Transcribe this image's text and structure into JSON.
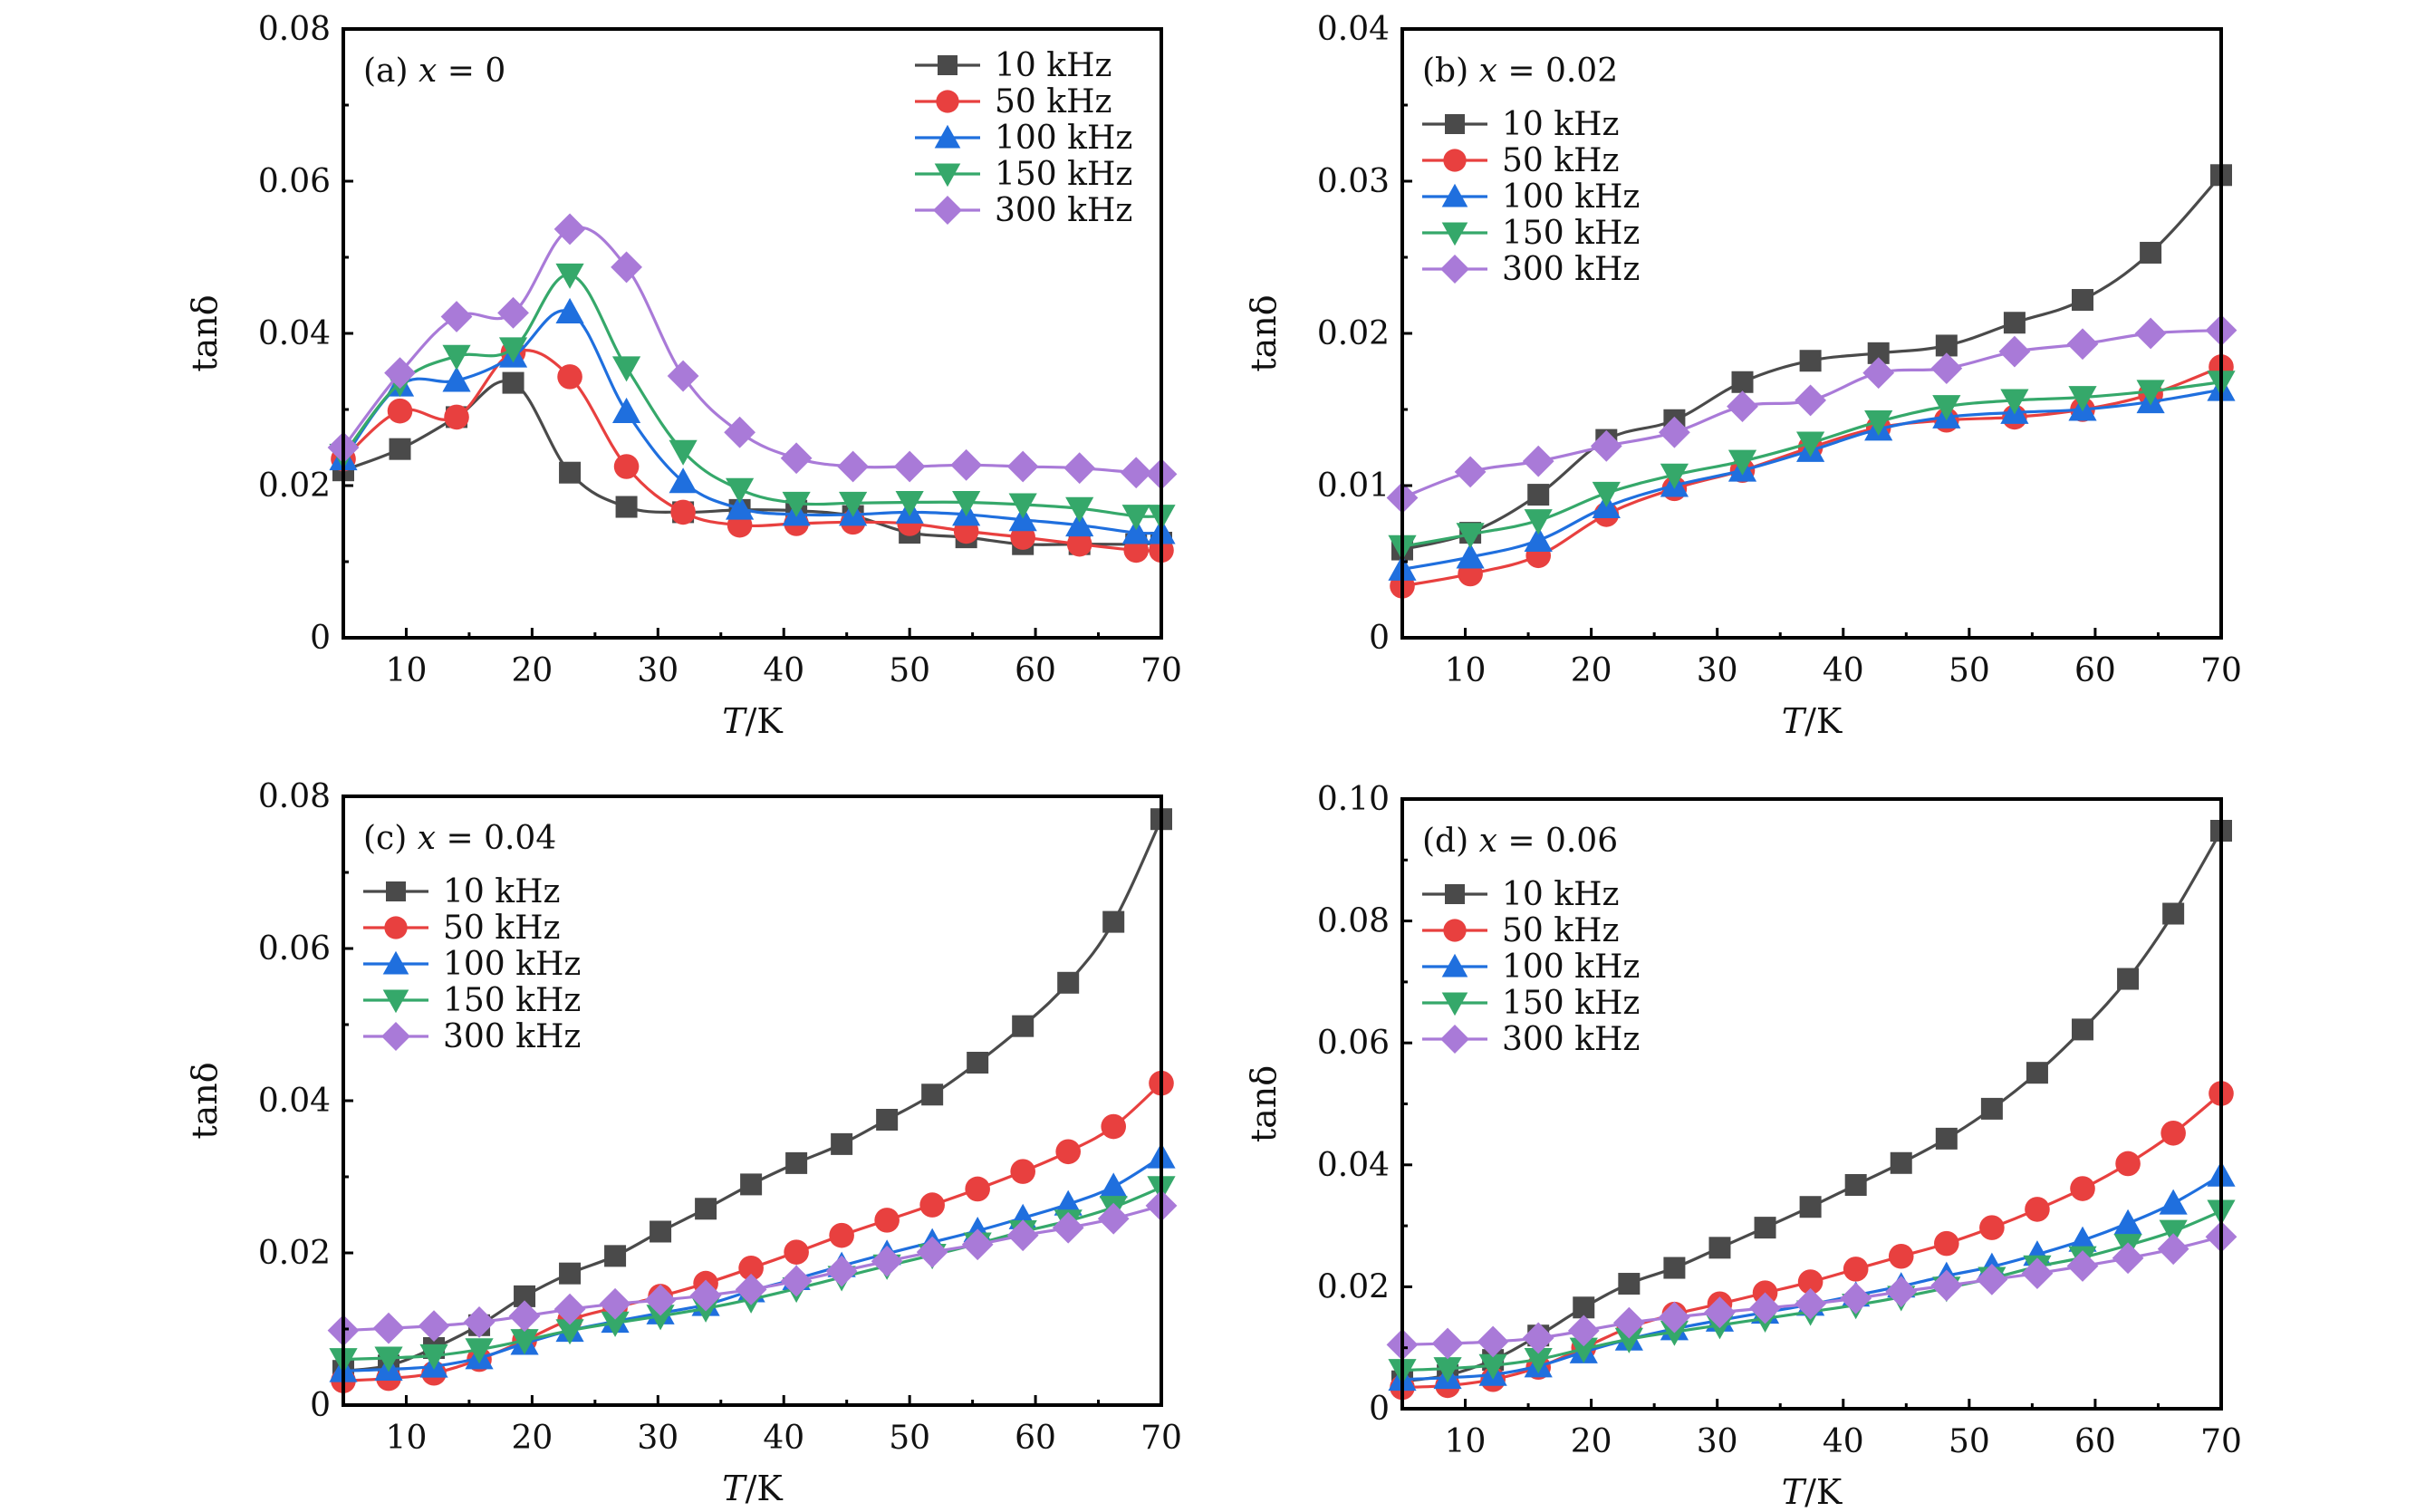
{
  "chart_data": [
    {
      "type": "line",
      "panel": "(a)",
      "title": "x = 0",
      "xlabel": "T/K",
      "ylabel": "tanδ",
      "xlim": [
        5,
        70
      ],
      "ylim": [
        0,
        0.08
      ],
      "xticks": [
        10,
        20,
        30,
        40,
        50,
        60,
        70
      ],
      "yticks": [
        0,
        0.02,
        0.04,
        0.06,
        0.08
      ],
      "ytick_labels": [
        "0",
        "0.02",
        "0.04",
        "0.06",
        "0.08"
      ],
      "legend_position": "top-right",
      "grid": false,
      "x": [
        5,
        9.5,
        14,
        18.5,
        23,
        27.5,
        32,
        36.5,
        41,
        45.5,
        50,
        54.5,
        59,
        63.5,
        68,
        70
      ],
      "series": [
        {
          "name": "10 kHz",
          "marker": "square",
          "color": "#4a4a4a",
          "values": [
            0.022,
            0.0248,
            0.029,
            0.0335,
            0.0217,
            0.0172,
            0.0165,
            0.0168,
            0.0167,
            0.016,
            0.0138,
            0.0132,
            0.0123,
            0.0123,
            0.0123,
            0.0125
          ]
        },
        {
          "name": "50 kHz",
          "marker": "circle",
          "color": "#e8403f",
          "values": [
            0.0235,
            0.0298,
            0.029,
            0.0375,
            0.0343,
            0.0225,
            0.0165,
            0.0148,
            0.015,
            0.0152,
            0.015,
            0.014,
            0.0132,
            0.0123,
            0.0115,
            0.0115
          ]
        },
        {
          "name": "100 kHz",
          "marker": "triangle-up",
          "color": "#1f6fde",
          "values": [
            0.0235,
            0.0332,
            0.0338,
            0.037,
            0.0428,
            0.0297,
            0.0205,
            0.017,
            0.0162,
            0.0162,
            0.0165,
            0.0162,
            0.0155,
            0.0148,
            0.0138,
            0.0138
          ]
        },
        {
          "name": "150 kHz",
          "marker": "triangle-down",
          "color": "#35a86a",
          "values": [
            0.024,
            0.0335,
            0.037,
            0.038,
            0.0477,
            0.0355,
            0.0245,
            0.0195,
            0.0177,
            0.0177,
            0.0178,
            0.0178,
            0.0175,
            0.017,
            0.016,
            0.016
          ]
        },
        {
          "name": "300 kHz",
          "marker": "diamond",
          "color": "#a97ad8",
          "values": [
            0.025,
            0.0348,
            0.0422,
            0.0427,
            0.0537,
            0.0487,
            0.0344,
            0.027,
            0.0236,
            0.0225,
            0.0225,
            0.0227,
            0.0225,
            0.0223,
            0.0217,
            0.0215
          ]
        }
      ]
    },
    {
      "type": "line",
      "panel": "(b)",
      "title": "x = 0.02",
      "xlabel": "T/K",
      "ylabel": "tanδ",
      "xlim": [
        5,
        70
      ],
      "ylim": [
        0,
        0.04
      ],
      "xticks": [
        10,
        20,
        30,
        40,
        50,
        60,
        70
      ],
      "yticks": [
        0,
        0.01,
        0.02,
        0.03,
        0.04
      ],
      "ytick_labels": [
        "0",
        "0.01",
        "0.02",
        "0.03",
        "0.04"
      ],
      "legend_position": "top-left",
      "grid": false,
      "x": [
        5,
        10.4,
        15.8,
        21.2,
        26.6,
        32,
        37.4,
        42.8,
        48.2,
        53.6,
        59,
        64.4,
        70
      ],
      "series": [
        {
          "name": "10 kHz",
          "marker": "square",
          "color": "#4a4a4a",
          "values": [
            0.0058,
            0.0069,
            0.0094,
            0.013,
            0.0143,
            0.0168,
            0.0182,
            0.0187,
            0.0192,
            0.0207,
            0.0222,
            0.0253,
            0.0304
          ]
        },
        {
          "name": "50 kHz",
          "marker": "circle",
          "color": "#e8403f",
          "values": [
            0.0034,
            0.0042,
            0.0054,
            0.0081,
            0.0098,
            0.011,
            0.0125,
            0.0138,
            0.0143,
            0.0145,
            0.015,
            0.016,
            0.0178
          ]
        },
        {
          "name": "100 kHz",
          "marker": "triangle-up",
          "color": "#1f6fde",
          "values": [
            0.0045,
            0.0053,
            0.0064,
            0.0086,
            0.01,
            0.011,
            0.0123,
            0.0137,
            0.0145,
            0.0148,
            0.015,
            0.0155,
            0.0163
          ]
        },
        {
          "name": "150 kHz",
          "marker": "triangle-down",
          "color": "#35a86a",
          "values": [
            0.006,
            0.0068,
            0.0077,
            0.0095,
            0.0107,
            0.0116,
            0.0128,
            0.0142,
            0.0152,
            0.0156,
            0.0158,
            0.0162,
            0.0168
          ]
        },
        {
          "name": "300 kHz",
          "marker": "diamond",
          "color": "#a97ad8",
          "values": [
            0.0092,
            0.0109,
            0.0116,
            0.0126,
            0.0135,
            0.0152,
            0.0156,
            0.0174,
            0.0177,
            0.0188,
            0.0193,
            0.02,
            0.0202
          ]
        }
      ]
    },
    {
      "type": "line",
      "panel": "(c)",
      "title": "x = 0.04",
      "xlabel": "T/K",
      "ylabel": "tanδ",
      "xlim": [
        5,
        70
      ],
      "ylim": [
        0,
        0.08
      ],
      "xticks": [
        10,
        20,
        30,
        40,
        50,
        60,
        70
      ],
      "yticks": [
        0,
        0.02,
        0.04,
        0.06,
        0.08
      ],
      "ytick_labels": [
        "0",
        "0.02",
        "0.04",
        "0.06",
        "0.08"
      ],
      "legend_position": "top-left",
      "grid": false,
      "x": [
        5,
        8.6,
        12.2,
        15.8,
        19.4,
        23,
        26.6,
        30.2,
        33.8,
        37.4,
        41,
        44.6,
        48.2,
        51.8,
        55.4,
        59,
        62.6,
        66.2,
        70
      ],
      "series": [
        {
          "name": "10 kHz",
          "marker": "square",
          "color": "#4a4a4a",
          "values": [
            0.0045,
            0.0052,
            0.0075,
            0.0105,
            0.0143,
            0.0173,
            0.0196,
            0.0228,
            0.0258,
            0.029,
            0.0318,
            0.0343,
            0.0375,
            0.0408,
            0.045,
            0.0498,
            0.0555,
            0.0635,
            0.077
          ]
        },
        {
          "name": "50 kHz",
          "marker": "circle",
          "color": "#e8403f",
          "values": [
            0.0032,
            0.0035,
            0.0042,
            0.006,
            0.0085,
            0.0112,
            0.0128,
            0.0143,
            0.016,
            0.018,
            0.0201,
            0.0223,
            0.0243,
            0.0263,
            0.0284,
            0.0307,
            0.0333,
            0.0366,
            0.0423
          ]
        },
        {
          "name": "100 kHz",
          "marker": "triangle-up",
          "color": "#1f6fde",
          "values": [
            0.0045,
            0.0047,
            0.0051,
            0.0062,
            0.0081,
            0.0098,
            0.011,
            0.0121,
            0.0132,
            0.015,
            0.0166,
            0.0183,
            0.0199,
            0.0214,
            0.0229,
            0.0246,
            0.0264,
            0.0287,
            0.0326
          ]
        },
        {
          "name": "150 kHz",
          "marker": "triangle-down",
          "color": "#35a86a",
          "values": [
            0.006,
            0.0062,
            0.0065,
            0.0073,
            0.0085,
            0.0098,
            0.0108,
            0.0117,
            0.0127,
            0.0139,
            0.0153,
            0.0168,
            0.0183,
            0.0197,
            0.0212,
            0.0228,
            0.0242,
            0.026,
            0.0286
          ]
        },
        {
          "name": "300 kHz",
          "marker": "diamond",
          "color": "#a97ad8",
          "values": [
            0.0098,
            0.0101,
            0.0104,
            0.0109,
            0.0117,
            0.0126,
            0.0133,
            0.0138,
            0.0144,
            0.0152,
            0.0163,
            0.0176,
            0.0189,
            0.0201,
            0.0211,
            0.0223,
            0.0233,
            0.0245,
            0.0262
          ]
        }
      ]
    },
    {
      "type": "line",
      "panel": "(d)",
      "title": "x = 0.06",
      "xlabel": "T/K",
      "ylabel": "tanδ",
      "xlim": [
        5,
        70
      ],
      "ylim": [
        0,
        0.1
      ],
      "xticks": [
        10,
        20,
        30,
        40,
        50,
        60,
        70
      ],
      "yticks": [
        0,
        0.02,
        0.04,
        0.06,
        0.08,
        0.1
      ],
      "ytick_labels": [
        "0",
        "0.02",
        "0.04",
        "0.06",
        "0.08",
        "0.10"
      ],
      "legend_position": "top-left",
      "grid": false,
      "x": [
        5,
        8.6,
        12.2,
        15.8,
        19.4,
        23,
        26.6,
        30.2,
        33.8,
        37.4,
        41,
        44.6,
        48.2,
        51.8,
        55.4,
        59,
        62.6,
        66.2,
        70
      ],
      "series": [
        {
          "name": "10 kHz",
          "marker": "square",
          "color": "#4a4a4a",
          "values": [
            0.0045,
            0.0055,
            0.008,
            0.012,
            0.0166,
            0.0205,
            0.0231,
            0.0264,
            0.0297,
            0.0331,
            0.0367,
            0.0403,
            0.0443,
            0.0492,
            0.0551,
            0.0622,
            0.0705,
            0.0812,
            0.0948
          ]
        },
        {
          "name": "50 kHz",
          "marker": "circle",
          "color": "#e8403f",
          "values": [
            0.0035,
            0.0038,
            0.0048,
            0.0068,
            0.01,
            0.0133,
            0.0155,
            0.0172,
            0.019,
            0.0208,
            0.0229,
            0.025,
            0.0271,
            0.0297,
            0.0327,
            0.0361,
            0.0402,
            0.0452,
            0.0517
          ]
        },
        {
          "name": "100 kHz",
          "marker": "triangle-up",
          "color": "#1f6fde",
          "values": [
            0.0048,
            0.0051,
            0.0056,
            0.007,
            0.0093,
            0.0114,
            0.0131,
            0.0145,
            0.0158,
            0.0171,
            0.0186,
            0.0201,
            0.0218,
            0.0233,
            0.0253,
            0.0276,
            0.0304,
            0.0337,
            0.0383
          ]
        },
        {
          "name": "150 kHz",
          "marker": "triangle-down",
          "color": "#35a86a",
          "values": [
            0.0063,
            0.0066,
            0.0071,
            0.0081,
            0.0098,
            0.0114,
            0.0126,
            0.0137,
            0.0148,
            0.0159,
            0.017,
            0.0183,
            0.0198,
            0.0214,
            0.0233,
            0.0248,
            0.0268,
            0.0291,
            0.0324
          ]
        },
        {
          "name": "300 kHz",
          "marker": "diamond",
          "color": "#a97ad8",
          "values": [
            0.0105,
            0.0107,
            0.011,
            0.0116,
            0.0128,
            0.0141,
            0.015,
            0.0158,
            0.0165,
            0.0172,
            0.0181,
            0.0192,
            0.0202,
            0.0212,
            0.0222,
            0.0234,
            0.0247,
            0.0262,
            0.0282
          ]
        }
      ]
    }
  ]
}
